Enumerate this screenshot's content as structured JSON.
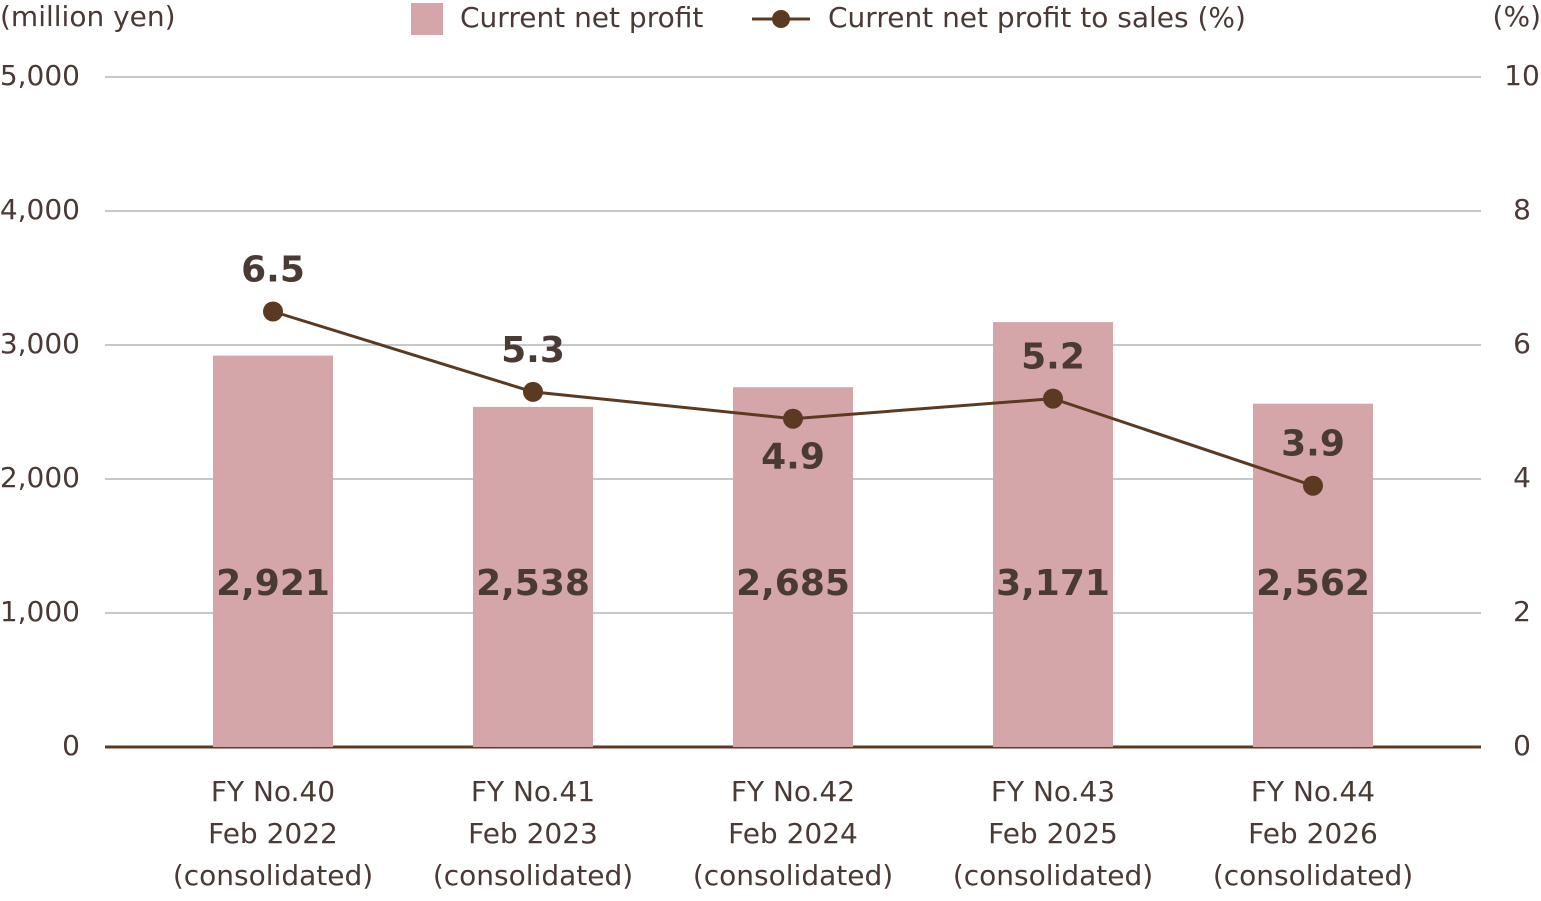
{
  "chart_data": {
    "type": "bar-line",
    "y_label": "(million yen)",
    "y2_label": "(%)",
    "categories": [
      [
        "FY No.40",
        "Feb 2022",
        "(consolidated)"
      ],
      [
        "FY No.41",
        "Feb 2023",
        "(consolidated)"
      ],
      [
        "FY No.42",
        "Feb 2024",
        "(consolidated)"
      ],
      [
        "FY No.43",
        "Feb 2025",
        "(consolidated)"
      ],
      [
        "FY No.44",
        "Feb 2026",
        "(consolidated)"
      ]
    ],
    "series": [
      {
        "name": "Current net profit",
        "type": "bar",
        "color": "#d4a5a9",
        "values": [
          2921,
          2538,
          2685,
          3171,
          2562
        ],
        "value_labels": [
          "2,921",
          "2,538",
          "2,685",
          "3,171",
          "2,562"
        ]
      },
      {
        "name": "Current net profit to sales (%)",
        "type": "line",
        "axis": "y2",
        "color": "#5c3a21",
        "values": [
          6.5,
          5.3,
          4.9,
          5.2,
          3.9
        ]
      }
    ],
    "ylim": [
      0,
      5000
    ],
    "yticks": [
      0,
      {
        "value": 1000,
        "label": "1,000"
      },
      {
        "value": 2000,
        "label": "2,000"
      },
      {
        "value": 3000,
        "label": "3,000"
      },
      {
        "value": 4000,
        "label": "4,000"
      },
      {
        "value": 5000,
        "label": "5,000"
      }
    ],
    "y2lim": [
      0,
      10
    ],
    "y2ticks": [
      0,
      2,
      4,
      6,
      8,
      10
    ],
    "grid": true
  }
}
